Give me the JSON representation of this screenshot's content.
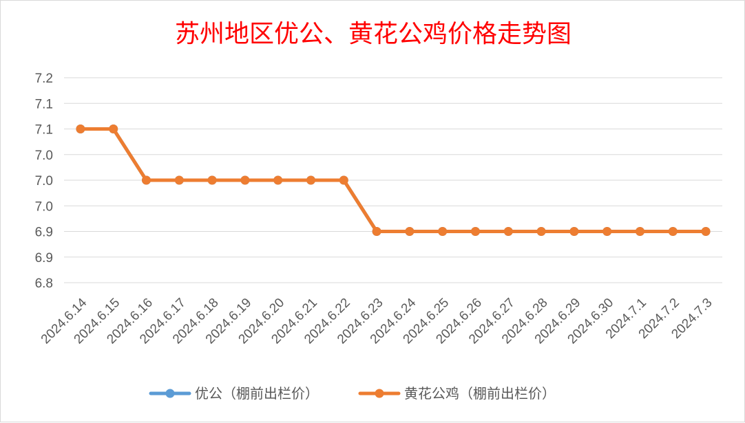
{
  "chart_data": {
    "type": "line",
    "title": "苏州地区优公、黄花公鸡价格走势图",
    "categories": [
      "2024.6.14",
      "2024.6.15",
      "2024.6.16",
      "2024.6.17",
      "2024.6.18",
      "2024.6.19",
      "2024.6.20",
      "2024.6.21",
      "2024.6.22",
      "2024.6.23",
      "2024.6.24",
      "2024.6.25",
      "2024.6.26",
      "2024.6.27",
      "2024.6.28",
      "2024.6.29",
      "2024.6.30",
      "2024.7.1",
      "2024.7.2",
      "2024.7.3"
    ],
    "y_ticks": [
      6.8,
      6.85,
      6.9,
      6.95,
      7.0,
      7.05,
      7.1,
      7.15,
      7.2
    ],
    "y_tick_labels": [
      "6.8",
      "6.9",
      "6.9",
      "7.0",
      "7.0",
      "7.0",
      "7.1",
      "7.1",
      "7.2"
    ],
    "ylim": [
      6.8,
      7.2
    ],
    "grid": true,
    "legend_position": "bottom",
    "series": [
      {
        "name": "优公（棚前出栏价）",
        "color": "#5b9bd5",
        "values": [
          7.1,
          7.1,
          7.0,
          7.0,
          7.0,
          7.0,
          7.0,
          7.0,
          7.0,
          6.9,
          6.9,
          6.9,
          6.9,
          6.9,
          6.9,
          6.9,
          6.9,
          6.9,
          6.9,
          6.9
        ]
      },
      {
        "name": "黄花公鸡（棚前出栏价）",
        "color": "#ed7d31",
        "values": [
          7.1,
          7.1,
          7.0,
          7.0,
          7.0,
          7.0,
          7.0,
          7.0,
          7.0,
          6.9,
          6.9,
          6.9,
          6.9,
          6.9,
          6.9,
          6.9,
          6.9,
          6.9,
          6.9,
          6.9
        ]
      }
    ]
  }
}
